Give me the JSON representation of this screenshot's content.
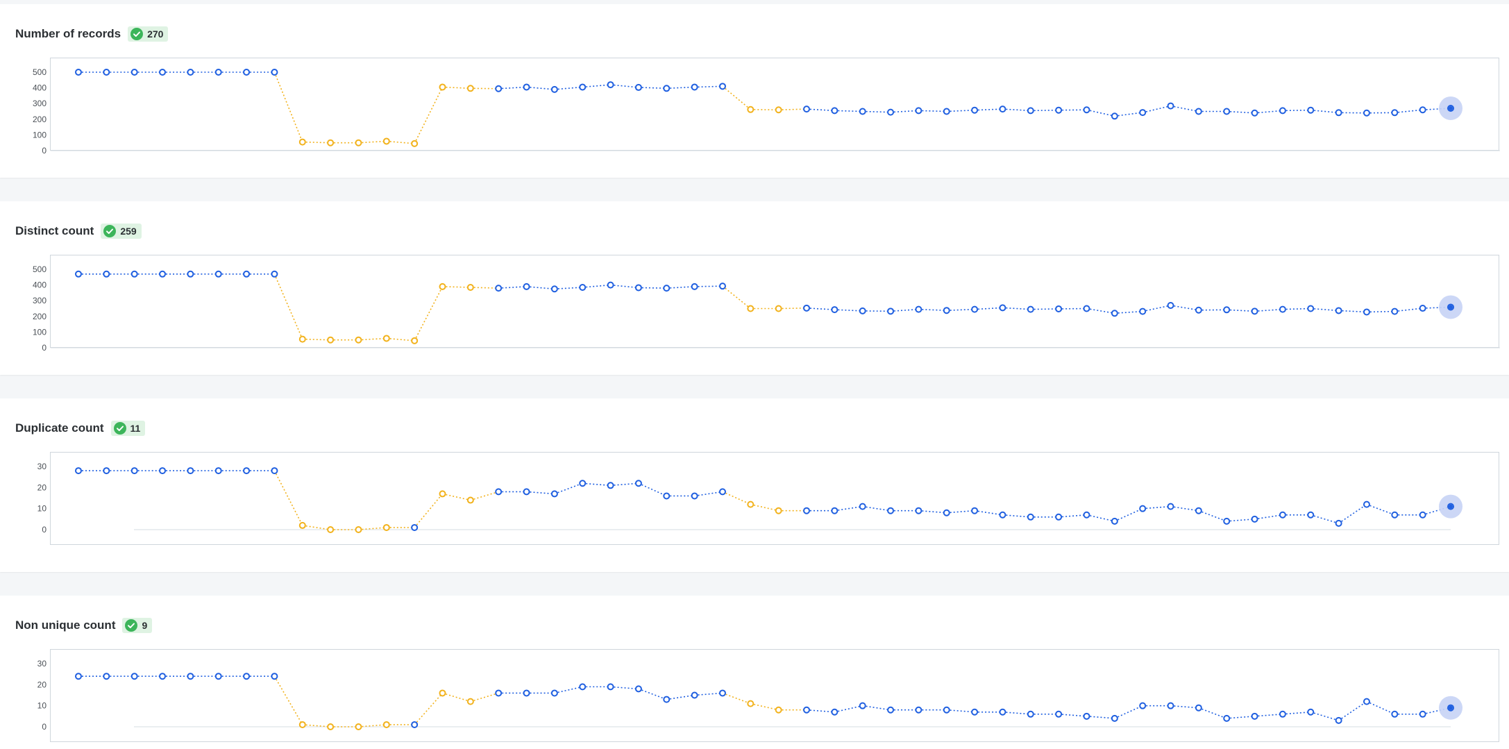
{
  "colors": {
    "ok": "#1f5fe0",
    "warn": "#f2b21c",
    "badge_bg": "#dff3e3",
    "check": "#3cb55a",
    "highlight": "#c7d3f5"
  },
  "badge_icon": "check-circle-icon",
  "chart_data": [
    {
      "type": "line",
      "title": "Number of records",
      "badge_value": "270",
      "ylim": [
        0,
        500
      ],
      "yticks": [
        "500",
        "400",
        "300",
        "200",
        "100",
        "0"
      ],
      "values": [
        500,
        500,
        500,
        500,
        500,
        500,
        500,
        500,
        55,
        50,
        50,
        60,
        45,
        405,
        397,
        395,
        405,
        390,
        405,
        420,
        403,
        397,
        405,
        410,
        262,
        260,
        265,
        255,
        250,
        245,
        255,
        250,
        258,
        265,
        255,
        258,
        260,
        220,
        243,
        285,
        250,
        250,
        240,
        255,
        258,
        242,
        240,
        242,
        260,
        270
      ],
      "status": [
        "ok",
        "ok",
        "ok",
        "ok",
        "ok",
        "ok",
        "ok",
        "ok",
        "warn",
        "warn",
        "warn",
        "warn",
        "warn",
        "warn",
        "warn",
        "ok",
        "ok",
        "ok",
        "ok",
        "ok",
        "ok",
        "ok",
        "ok",
        "ok",
        "warn",
        "warn",
        "ok",
        "ok",
        "ok",
        "ok",
        "ok",
        "ok",
        "ok",
        "ok",
        "ok",
        "ok",
        "ok",
        "ok",
        "ok",
        "ok",
        "ok",
        "ok",
        "ok",
        "ok",
        "ok",
        "ok",
        "ok",
        "ok",
        "ok",
        "ok"
      ]
    },
    {
      "type": "line",
      "title": "Distinct count",
      "badge_value": "259",
      "ylim": [
        0,
        500
      ],
      "yticks": [
        "500",
        "400",
        "300",
        "200",
        "100",
        "0"
      ],
      "values": [
        470,
        470,
        470,
        470,
        470,
        470,
        470,
        470,
        55,
        50,
        50,
        60,
        45,
        390,
        385,
        380,
        390,
        375,
        385,
        400,
        383,
        380,
        390,
        393,
        250,
        250,
        253,
        243,
        235,
        233,
        245,
        238,
        245,
        255,
        245,
        248,
        250,
        220,
        232,
        270,
        240,
        242,
        233,
        245,
        250,
        237,
        228,
        232,
        252,
        259
      ],
      "status": [
        "ok",
        "ok",
        "ok",
        "ok",
        "ok",
        "ok",
        "ok",
        "ok",
        "warn",
        "warn",
        "warn",
        "warn",
        "warn",
        "warn",
        "warn",
        "ok",
        "ok",
        "ok",
        "ok",
        "ok",
        "ok",
        "ok",
        "ok",
        "ok",
        "warn",
        "warn",
        "ok",
        "ok",
        "ok",
        "ok",
        "ok",
        "ok",
        "ok",
        "ok",
        "ok",
        "ok",
        "ok",
        "ok",
        "ok",
        "ok",
        "ok",
        "ok",
        "ok",
        "ok",
        "ok",
        "ok",
        "ok",
        "ok",
        "ok",
        "ok"
      ]
    },
    {
      "type": "line",
      "title": "Duplicate count",
      "badge_value": "11",
      "ylim": [
        0,
        30
      ],
      "yticks": [
        "30",
        "20",
        "10",
        "0"
      ],
      "values": [
        28,
        28,
        28,
        28,
        28,
        28,
        28,
        28,
        2,
        0,
        0,
        1,
        1,
        17,
        14,
        18,
        18,
        17,
        22,
        21,
        22,
        16,
        16,
        18,
        12,
        9,
        9,
        9,
        11,
        9,
        9,
        8,
        9,
        7,
        6,
        6,
        7,
        4,
        10,
        11,
        9,
        4,
        5,
        7,
        7,
        3,
        12,
        7,
        7,
        11
      ],
      "status": [
        "ok",
        "ok",
        "ok",
        "ok",
        "ok",
        "ok",
        "ok",
        "ok",
        "warn",
        "warn",
        "warn",
        "warn",
        "ok",
        "warn",
        "warn",
        "ok",
        "ok",
        "ok",
        "ok",
        "ok",
        "ok",
        "ok",
        "ok",
        "ok",
        "warn",
        "warn",
        "ok",
        "ok",
        "ok",
        "ok",
        "ok",
        "ok",
        "ok",
        "ok",
        "ok",
        "ok",
        "ok",
        "ok",
        "ok",
        "ok",
        "ok",
        "ok",
        "ok",
        "ok",
        "ok",
        "ok",
        "ok",
        "ok",
        "ok",
        "ok"
      ]
    },
    {
      "type": "line",
      "title": "Non unique count",
      "badge_value": "9",
      "ylim": [
        0,
        30
      ],
      "yticks": [
        "30",
        "20",
        "10",
        "0"
      ],
      "values": [
        24,
        24,
        24,
        24,
        24,
        24,
        24,
        24,
        1,
        0,
        0,
        1,
        1,
        16,
        12,
        16,
        16,
        16,
        19,
        19,
        18,
        13,
        15,
        16,
        11,
        8,
        8,
        7,
        10,
        8,
        8,
        8,
        7,
        7,
        6,
        6,
        5,
        4,
        10,
        10,
        9,
        4,
        5,
        6,
        7,
        3,
        12,
        6,
        6,
        9
      ],
      "status": [
        "ok",
        "ok",
        "ok",
        "ok",
        "ok",
        "ok",
        "ok",
        "ok",
        "warn",
        "warn",
        "warn",
        "warn",
        "ok",
        "warn",
        "warn",
        "ok",
        "ok",
        "ok",
        "ok",
        "ok",
        "ok",
        "ok",
        "ok",
        "ok",
        "warn",
        "warn",
        "ok",
        "ok",
        "ok",
        "ok",
        "ok",
        "ok",
        "ok",
        "ok",
        "ok",
        "ok",
        "ok",
        "ok",
        "ok",
        "ok",
        "ok",
        "ok",
        "ok",
        "ok",
        "ok",
        "ok",
        "ok",
        "ok",
        "ok",
        "ok"
      ]
    }
  ]
}
